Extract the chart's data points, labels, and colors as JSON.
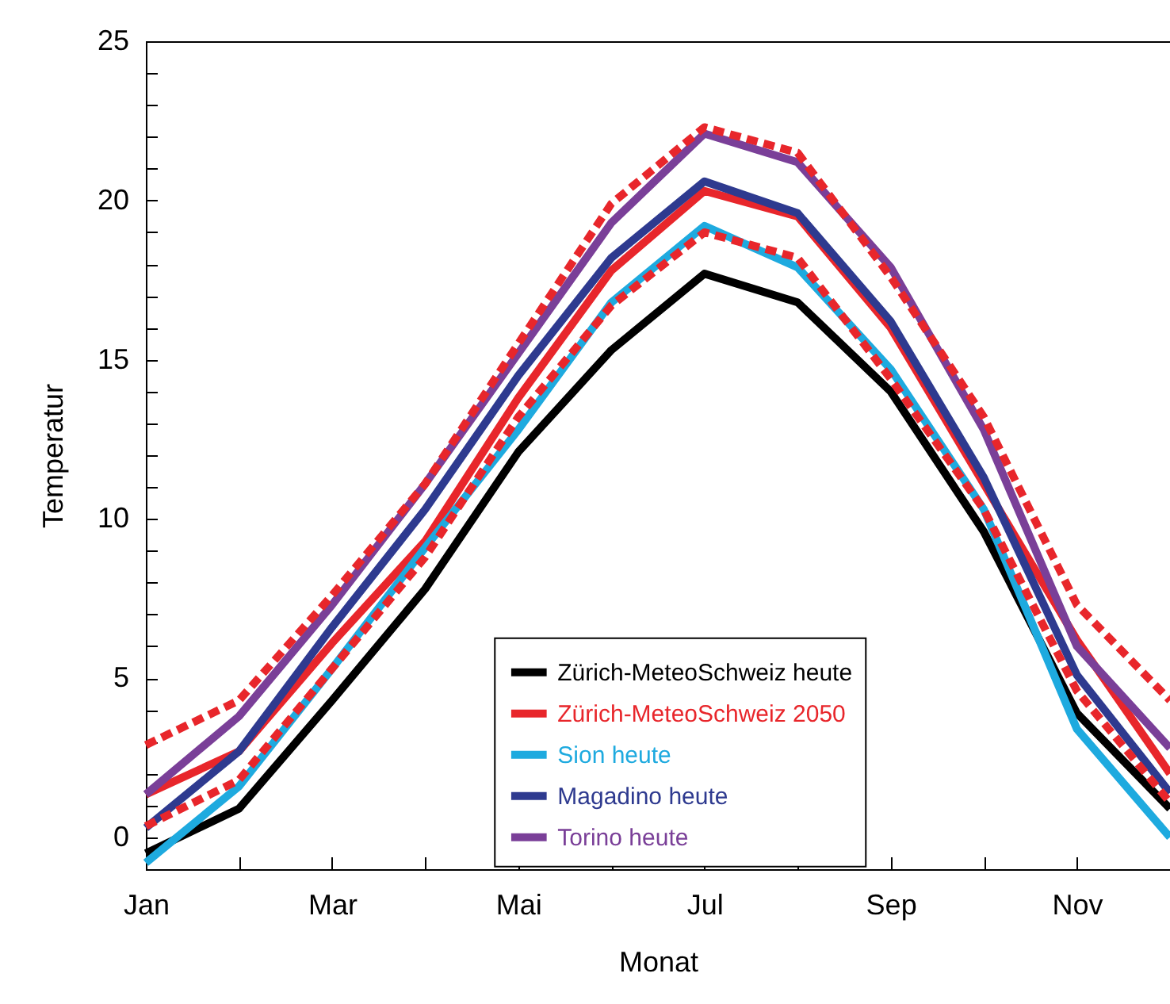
{
  "chart_data": {
    "type": "line",
    "xlabel": "Monat",
    "ylabel": "Temperatur",
    "categories": [
      "Jan",
      null,
      "Mar",
      null,
      "Mai",
      null,
      "Jul",
      null,
      "Sep",
      null,
      "Nov",
      null
    ],
    "ylim": [
      -1,
      25
    ],
    "yticks": [
      0,
      {
        "value": 1,
        "label": null
      },
      {
        "value": 2,
        "label": null
      },
      {
        "value": 3,
        "label": null
      },
      {
        "value": 4,
        "label": null
      },
      5,
      {
        "value": 6,
        "label": null
      },
      {
        "value": 7,
        "label": null
      },
      {
        "value": 8,
        "label": null
      },
      {
        "value": 9,
        "label": null
      },
      10,
      {
        "value": 11,
        "label": null
      },
      {
        "value": 12,
        "label": null
      },
      {
        "value": 13,
        "label": null
      },
      {
        "value": 14,
        "label": null
      },
      15,
      {
        "value": 16,
        "label": null
      },
      {
        "value": 17,
        "label": null
      },
      {
        "value": 18,
        "label": null
      },
      {
        "value": 19,
        "label": null
      },
      20,
      {
        "value": 21,
        "label": null
      },
      {
        "value": 22,
        "label": null
      },
      {
        "value": 23,
        "label": null
      },
      {
        "value": 24,
        "label": null
      },
      25
    ],
    "grid": false,
    "legend": "bottom",
    "series": [
      {
        "name": "Zürich-MeteoSchweiz heute",
        "color": "#000000",
        "values": [
          -0.5,
          0.9,
          4.3,
          7.8,
          12.1,
          15.3,
          17.7,
          16.8,
          14.0,
          9.6,
          3.9,
          0.9
        ]
      },
      {
        "name": "Zürich-MeteoSchweiz 2050",
        "color": "#e8262b",
        "values": [
          1.35,
          2.7,
          6.1,
          9.3,
          13.8,
          17.8,
          20.3,
          19.5,
          16.0,
          11.1,
          6.2,
          2.0
        ]
      },
      {
        "name": "Sion heute",
        "color": "#1eaadf",
        "values": [
          -0.8,
          1.6,
          5.3,
          9.1,
          12.8,
          16.8,
          19.2,
          17.9,
          14.7,
          10.3,
          3.4,
          0.0
        ]
      },
      {
        "name": "Magadino heute",
        "color": "#2e3a8f",
        "values": [
          0.3,
          2.7,
          6.6,
          10.3,
          14.5,
          18.2,
          20.6,
          19.6,
          16.2,
          11.3,
          5.1,
          1.4
        ]
      },
      {
        "name": "Torino heute",
        "color": "#7a3f98",
        "values": [
          1.35,
          3.8,
          7.3,
          11.1,
          15.2,
          19.3,
          22.1,
          21.2,
          17.9,
          12.8,
          6.0,
          2.8
        ]
      },
      {
        "color": "#e8262b",
        "line_style": "dashed",
        "values": [
          2.9,
          4.3,
          7.6,
          11.1,
          15.5,
          19.9,
          22.3,
          21.5,
          17.6,
          13.2,
          7.3,
          4.3
        ]
      },
      {
        "color": "#e8262b",
        "line_style": "dashed",
        "values": [
          0.35,
          1.8,
          5.3,
          8.8,
          13.2,
          16.7,
          19.0,
          18.2,
          14.4,
          10.3,
          4.6,
          1.1
        ]
      }
    ]
  }
}
